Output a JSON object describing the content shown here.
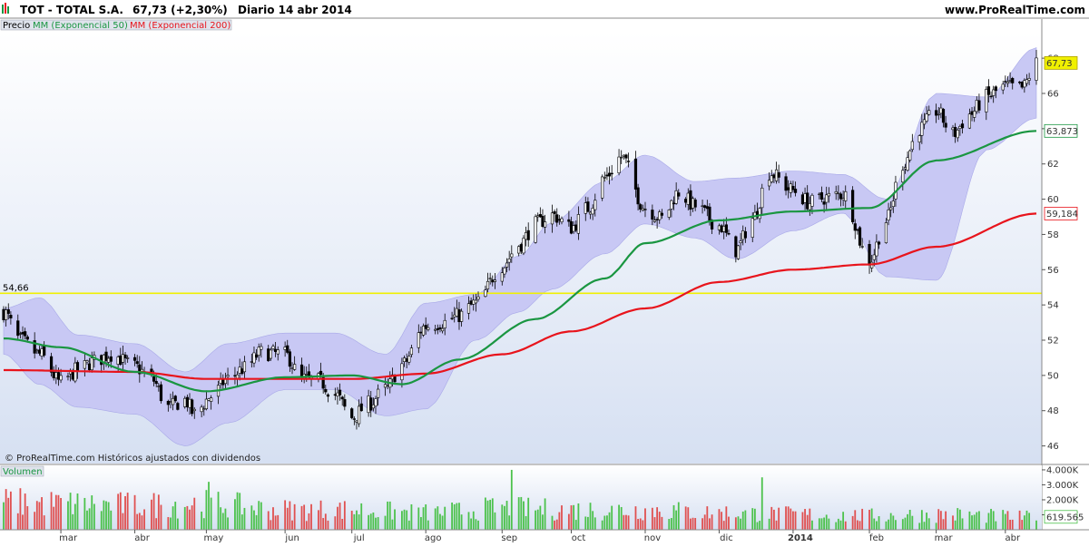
{
  "header": {
    "ticker_name": "TOT - TOTAL S.A.",
    "price_change": "67,73 (+2,30%)",
    "period_date": "Diario  14 abr 2014",
    "site": "www.ProRealTime.com"
  },
  "legend": {
    "price": "Precio",
    "ma50": "MM (Exponencial 50)",
    "ma200": "MM (Exponencial 200)",
    "volume": "Volumen"
  },
  "copyright": "© ProRealTime.com  Históricos ajustados con dividendos",
  "colors": {
    "ma50": "#1a9641",
    "ma200": "#e8141c",
    "band": "#c8c8f4",
    "hline": "#f0f000",
    "vol_up": "#4cc24c",
    "vol_down": "#e05050",
    "last_price_box": "#f0f000"
  },
  "chart_data": {
    "type": "line",
    "price_axis": {
      "ylim": [
        45,
        69.5
      ],
      "ticks": [
        46,
        48,
        50,
        52,
        54,
        56,
        58,
        60,
        62,
        64,
        66,
        68
      ]
    },
    "price_tick_labels": [
      "46",
      "48",
      "50",
      "52",
      "54",
      "56",
      "58",
      "60",
      "62",
      "64",
      "66",
      "68"
    ],
    "volume_axis": {
      "ylim": [
        0,
        4300000
      ],
      "ticks": [
        1000000,
        2000000,
        3000000,
        4000000
      ]
    },
    "volume_tick_labels": [
      "1.000K",
      "2.000K",
      "3.000K",
      "4.000K"
    ],
    "x_labels": [
      "mar",
      "abr",
      "may",
      "jun",
      "jul",
      "ago",
      "sep",
      "oct",
      "nov",
      "dic",
      "2014",
      "feb",
      "mar",
      "abr"
    ],
    "x_label_dates": [
      "2013-03-01",
      "2013-04-01",
      "2013-05-01",
      "2013-06-03",
      "2013-07-01",
      "2013-08-01",
      "2013-09-02",
      "2013-10-01",
      "2013-11-01",
      "2013-12-02",
      "2014-01-02",
      "2014-02-03",
      "2014-03-03",
      "2014-04-01"
    ],
    "date_range": [
      "2013-02-05",
      "2014-04-14"
    ],
    "horizontal_line": {
      "value": 54.66,
      "label": "54,66"
    },
    "markers": {
      "last_price": {
        "value": 67.73,
        "label": "67,73"
      },
      "ma50_last": {
        "value": 63.873,
        "label": "63,873"
      },
      "ma200_last": {
        "value": 59.184,
        "label": "59,184"
      },
      "last_volume": {
        "value": 619565,
        "label": "619.565"
      }
    },
    "close_anchors": {
      "x": [
        "2013-02-05",
        "2013-02-12",
        "2013-02-20",
        "2013-03-01",
        "2013-03-08",
        "2013-03-15",
        "2013-03-22",
        "2013-04-01",
        "2013-04-08",
        "2013-04-15",
        "2013-04-22",
        "2013-04-26",
        "2013-05-03",
        "2013-05-10",
        "2013-05-17",
        "2013-05-24",
        "2013-06-03",
        "2013-06-10",
        "2013-06-17",
        "2013-06-24",
        "2013-07-01",
        "2013-07-08",
        "2013-07-15",
        "2013-07-22",
        "2013-08-01",
        "2013-08-08",
        "2013-08-15",
        "2013-08-22",
        "2013-09-02",
        "2013-09-09",
        "2013-09-16",
        "2013-09-23",
        "2013-10-01",
        "2013-10-08",
        "2013-10-15",
        "2013-10-22",
        "2013-11-01",
        "2013-11-08",
        "2013-11-15",
        "2013-11-22",
        "2013-12-02",
        "2013-12-09",
        "2013-12-16",
        "2013-12-23",
        "2014-01-02",
        "2014-01-09",
        "2014-01-16",
        "2014-01-23",
        "2014-02-03",
        "2014-02-10",
        "2014-02-17",
        "2014-02-24",
        "2014-03-03",
        "2014-03-10",
        "2014-03-17",
        "2014-03-24",
        "2014-04-01",
        "2014-04-08",
        "2014-04-14"
      ],
      "y": [
        53.6,
        52.0,
        51.2,
        49.6,
        50.3,
        50.8,
        51.2,
        50.5,
        49.8,
        48.2,
        48.6,
        47.8,
        48.8,
        49.8,
        50.4,
        51.3,
        51.2,
        49.8,
        49.7,
        48.9,
        47.6,
        48.4,
        49.2,
        50.6,
        52.8,
        53.0,
        53.4,
        54.1,
        56.2,
        57.4,
        58.6,
        59.1,
        58.4,
        59.5,
        61.2,
        62.4,
        59.5,
        58.9,
        60.4,
        59.6,
        58.5,
        57.1,
        58.9,
        61.5,
        60.5,
        59.8,
        60.1,
        60.3,
        56.5,
        58.8,
        62.0,
        64.0,
        65.0,
        63.7,
        64.8,
        65.8,
        66.4,
        66.3,
        67.73
      ]
    },
    "ma50_anchors": {
      "x": [
        "2013-02-05",
        "2013-03-01",
        "2013-04-01",
        "2013-05-01",
        "2013-06-03",
        "2013-07-01",
        "2013-07-22",
        "2013-08-15",
        "2013-09-16",
        "2013-10-15",
        "2013-11-01",
        "2013-12-02",
        "2014-01-02",
        "2014-02-03",
        "2014-03-03",
        "2014-04-14"
      ],
      "y": [
        52.1,
        51.6,
        50.2,
        49.1,
        49.9,
        50.0,
        49.5,
        50.9,
        53.2,
        55.5,
        57.5,
        58.8,
        59.3,
        59.5,
        62.2,
        63.873
      ]
    },
    "ma200_anchors": {
      "x": [
        "2013-02-05",
        "2013-04-01",
        "2013-05-01",
        "2013-06-03",
        "2013-07-01",
        "2013-08-01",
        "2013-09-02",
        "2013-10-01",
        "2013-11-01",
        "2013-12-02",
        "2014-01-02",
        "2014-02-03",
        "2014-03-03",
        "2014-04-14"
      ],
      "y": [
        50.3,
        50.2,
        49.8,
        49.8,
        49.8,
        50.1,
        51.2,
        52.5,
        53.8,
        55.3,
        56.0,
        56.3,
        57.3,
        59.184
      ]
    },
    "band_anchors": {
      "x": [
        "2013-02-05",
        "2013-02-20",
        "2013-03-08",
        "2013-04-01",
        "2013-04-22",
        "2013-05-10",
        "2013-06-03",
        "2013-06-24",
        "2013-07-15",
        "2013-08-01",
        "2013-08-22",
        "2013-09-09",
        "2013-09-23",
        "2013-10-15",
        "2013-11-01",
        "2013-11-22",
        "2013-12-09",
        "2014-01-02",
        "2014-01-23",
        "2014-02-10",
        "2014-03-03",
        "2014-03-24",
        "2014-04-14"
      ],
      "upper": [
        53.8,
        54.4,
        52.3,
        51.8,
        50.2,
        51.8,
        52.4,
        52.4,
        51.2,
        54.1,
        54.6,
        56.8,
        58.7,
        61.0,
        62.5,
        61.0,
        61.2,
        61.6,
        61.4,
        60.0,
        66.0,
        65.8,
        68.6
      ],
      "lower": [
        51.2,
        49.5,
        48.2,
        47.8,
        46.0,
        47.3,
        49.2,
        49.2,
        47.7,
        48.1,
        52.0,
        53.6,
        54.9,
        56.9,
        58.6,
        57.8,
        56.6,
        58.2,
        59.2,
        55.6,
        55.4,
        62.8,
        64.6
      ]
    },
    "volume_anchors": {
      "x": [
        "2013-02-05",
        "2013-03-01",
        "2013-04-01",
        "2013-05-01",
        "2013-06-03",
        "2013-07-01",
        "2013-08-01",
        "2013-09-02",
        "2013-10-01",
        "2013-11-01",
        "2013-12-02",
        "2014-01-02",
        "2014-02-03",
        "2014-03-03",
        "2014-04-14"
      ],
      "y": [
        1800000,
        1700000,
        1600000,
        1700000,
        1300000,
        1300000,
        1100000,
        1400000,
        1300000,
        1300000,
        1100000,
        1000000,
        900000,
        1000000,
        800000
      ]
    },
    "volume_spikes": [
      {
        "x": "2013-09-06",
        "value": 4000000
      },
      {
        "x": "2013-12-20",
        "value": 3500000
      },
      {
        "x": "2013-05-02",
        "value": 3200000
      }
    ]
  }
}
